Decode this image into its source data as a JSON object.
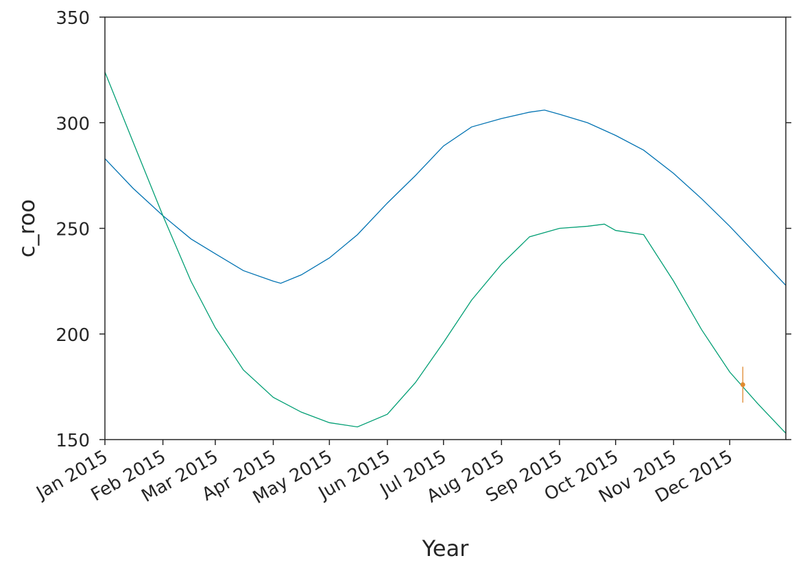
{
  "chart_data": {
    "type": "line",
    "title": "",
    "xlabel": "Year",
    "ylabel": "c_roo",
    "ylim": [
      150,
      350
    ],
    "yticks": [
      150,
      200,
      250,
      300,
      350
    ],
    "xlim": [
      "2015-01-01",
      "2015-12-31"
    ],
    "xticks": [
      {
        "date": "2015-01-01",
        "label": "Jan 2015"
      },
      {
        "date": "2015-02-01",
        "label": "Feb 2015"
      },
      {
        "date": "2015-03-01",
        "label": "Mar 2015"
      },
      {
        "date": "2015-04-01",
        "label": "Apr 2015"
      },
      {
        "date": "2015-05-01",
        "label": "May 2015"
      },
      {
        "date": "2015-06-01",
        "label": "Jun 2015"
      },
      {
        "date": "2015-07-01",
        "label": "Jul 2015"
      },
      {
        "date": "2015-08-01",
        "label": "Aug 2015"
      },
      {
        "date": "2015-09-01",
        "label": "Sep 2015"
      },
      {
        "date": "2015-10-01",
        "label": "Oct 2015"
      },
      {
        "date": "2015-11-01",
        "label": "Nov 2015"
      },
      {
        "date": "2015-12-01",
        "label": "Dec 2015"
      }
    ],
    "grid": false,
    "series": [
      {
        "color": "#0072b2",
        "points": [
          [
            "2015-01-01",
            283
          ],
          [
            "2015-01-16",
            269
          ],
          [
            "2015-02-01",
            256
          ],
          [
            "2015-02-16",
            245
          ],
          [
            "2015-03-01",
            238
          ],
          [
            "2015-03-16",
            230
          ],
          [
            "2015-04-01",
            225
          ],
          [
            "2015-04-05",
            224
          ],
          [
            "2015-04-16",
            228
          ],
          [
            "2015-05-01",
            236
          ],
          [
            "2015-05-16",
            247
          ],
          [
            "2015-06-01",
            262
          ],
          [
            "2015-06-16",
            275
          ],
          [
            "2015-07-01",
            289
          ],
          [
            "2015-07-16",
            298
          ],
          [
            "2015-08-01",
            302
          ],
          [
            "2015-08-16",
            305
          ],
          [
            "2015-08-24",
            306
          ],
          [
            "2015-09-01",
            304
          ],
          [
            "2015-09-16",
            300
          ],
          [
            "2015-10-01",
            294
          ],
          [
            "2015-10-16",
            287
          ],
          [
            "2015-11-01",
            276
          ],
          [
            "2015-11-16",
            264
          ],
          [
            "2015-12-01",
            251
          ],
          [
            "2015-12-16",
            237
          ],
          [
            "2015-12-31",
            223
          ]
        ]
      },
      {
        "color": "#009e73",
        "points": [
          [
            "2015-01-01",
            324
          ],
          [
            "2015-01-16",
            291
          ],
          [
            "2015-02-01",
            256
          ],
          [
            "2015-02-16",
            225
          ],
          [
            "2015-03-01",
            203
          ],
          [
            "2015-03-16",
            183
          ],
          [
            "2015-04-01",
            170
          ],
          [
            "2015-04-16",
            163
          ],
          [
            "2015-05-01",
            158
          ],
          [
            "2015-05-16",
            156
          ],
          [
            "2015-06-01",
            162
          ],
          [
            "2015-06-16",
            177
          ],
          [
            "2015-07-01",
            196
          ],
          [
            "2015-07-16",
            216
          ],
          [
            "2015-08-01",
            233
          ],
          [
            "2015-08-16",
            246
          ],
          [
            "2015-09-01",
            250
          ],
          [
            "2015-09-16",
            251
          ],
          [
            "2015-09-25",
            252
          ],
          [
            "2015-10-01",
            249
          ],
          [
            "2015-10-16",
            247
          ],
          [
            "2015-11-01",
            225
          ],
          [
            "2015-11-16",
            202
          ],
          [
            "2015-12-01",
            182
          ],
          [
            "2015-12-16",
            167
          ],
          [
            "2015-12-31",
            153
          ]
        ]
      }
    ],
    "errorbar": {
      "color": "#e08a2f",
      "x": "2015-12-08",
      "y": 176,
      "yerr": 8.5
    }
  }
}
